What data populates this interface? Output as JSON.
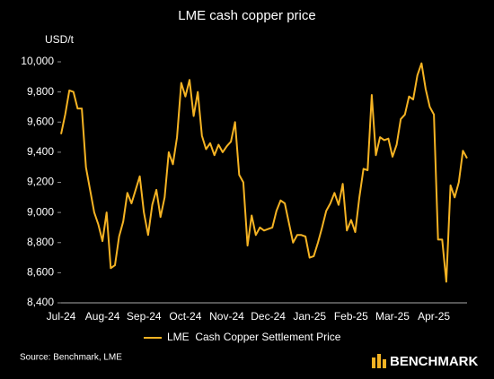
{
  "chart_data": {
    "type": "line",
    "title": "LME cash copper price",
    "y_label": "USD/t",
    "categories": [
      "Jul-24",
      null,
      null,
      null,
      null,
      null,
      null,
      null,
      null,
      null,
      "Aug-24",
      null,
      null,
      null,
      null,
      null,
      null,
      null,
      null,
      null,
      "Sep-24",
      null,
      null,
      null,
      null,
      null,
      null,
      null,
      null,
      null,
      "Oct-24",
      null,
      null,
      null,
      null,
      null,
      null,
      null,
      null,
      null,
      "Nov-24",
      null,
      null,
      null,
      null,
      null,
      null,
      null,
      null,
      null,
      "Dec-24",
      null,
      null,
      null,
      null,
      null,
      null,
      null,
      null,
      null,
      "Jan-25",
      null,
      null,
      null,
      null,
      null,
      null,
      null,
      null,
      null,
      "Feb-25",
      null,
      null,
      null,
      null,
      null,
      null,
      null,
      null,
      null,
      "Mar-25",
      null,
      null,
      null,
      null,
      null,
      null,
      null,
      null,
      null,
      "Apr-25",
      null,
      null,
      null,
      null,
      null,
      null,
      null,
      null
    ],
    "series": [
      {
        "name": "LME  Cash Copper Settlement Price",
        "color": "#f5b323",
        "values": [
          9520,
          9650,
          9810,
          9800,
          9690,
          9690,
          9300,
          9150,
          9000,
          8920,
          8810,
          9000,
          8630,
          8650,
          8840,
          8940,
          9130,
          9060,
          9150,
          9240,
          9000,
          8850,
          9050,
          9150,
          8970,
          9100,
          9400,
          9320,
          9500,
          9860,
          9770,
          9880,
          9640,
          9800,
          9510,
          9420,
          9460,
          9380,
          9450,
          9400,
          9440,
          9470,
          9600,
          9250,
          9200,
          8780,
          8980,
          8850,
          8900,
          8880,
          8890,
          8900,
          9010,
          9080,
          9060,
          8930,
          8800,
          8850,
          8850,
          8840,
          8700,
          8710,
          8800,
          8900,
          9010,
          9060,
          9130,
          9050,
          9190,
          8880,
          8950,
          8870,
          9100,
          9290,
          9280,
          9780,
          9380,
          9500,
          9480,
          9490,
          9370,
          9450,
          9620,
          9650,
          9770,
          9750,
          9910,
          9990,
          9820,
          9700,
          9650,
          8820,
          8820,
          8540,
          9180,
          9100,
          9200,
          9410,
          9360
        ]
      }
    ],
    "ylim": [
      8400,
      10000
    ],
    "yticks": [
      {
        "value": 8400,
        "label": "8,400"
      },
      {
        "value": 8600,
        "label": "8,600"
      },
      {
        "value": 8800,
        "label": "8,800"
      },
      {
        "value": 9000,
        "label": "9,000"
      },
      {
        "value": 9200,
        "label": "9,200"
      },
      {
        "value": 9400,
        "label": "9,400"
      },
      {
        "value": 9600,
        "label": "9,600"
      },
      {
        "value": 9800,
        "label": "9,800"
      },
      {
        "value": 10000,
        "label": "10,000"
      }
    ],
    "grid": false,
    "legend": "bottom",
    "source": "Source: Benchmark, LME",
    "logo": "BENCHMARK"
  }
}
